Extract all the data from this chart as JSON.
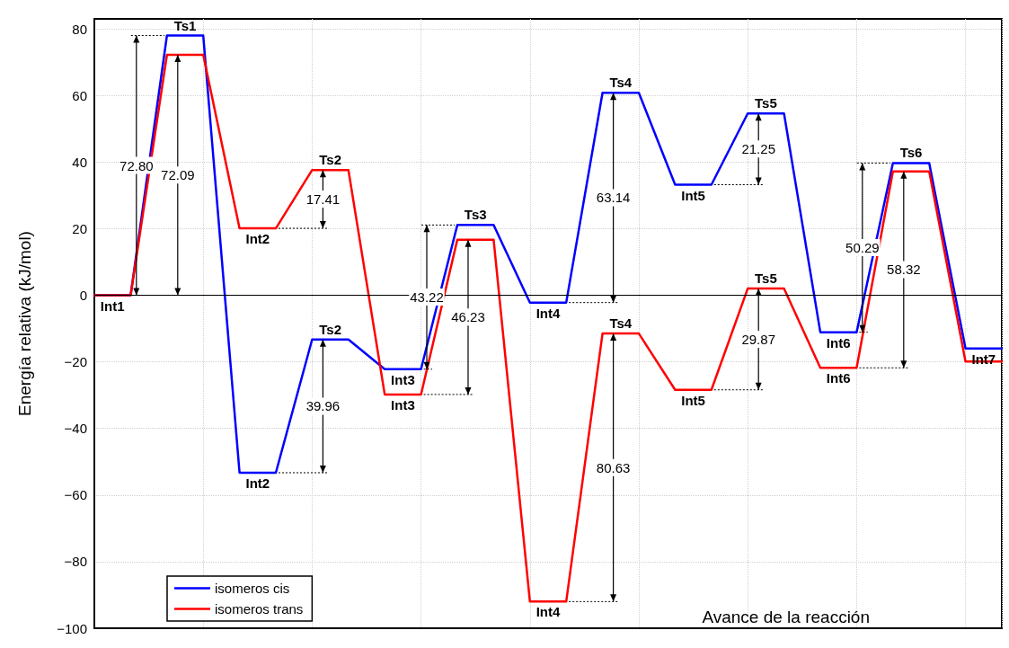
{
  "chart_data": {
    "type": "line",
    "xlabel": "Avance de la reacción",
    "ylabel": "Energía relativa (kJ/mol)",
    "categories": [
      null,
      null,
      null,
      null,
      null,
      null,
      null,
      null,
      null,
      null,
      null,
      null,
      null,
      null,
      null,
      null,
      null,
      null,
      null,
      null,
      null,
      null,
      null,
      null,
      null,
      null
    ],
    "ylim": [
      -100,
      83
    ],
    "yticks": [
      {
        "value": -100,
        "label": "−100"
      },
      {
        "value": -80,
        "label": "−80"
      },
      {
        "value": -60,
        "label": "−60"
      },
      {
        "value": -40,
        "label": "−40"
      },
      {
        "value": -20,
        "label": "−20"
      },
      0,
      20,
      40,
      60,
      80
    ],
    "grid": true,
    "legend": "bottom left",
    "marker": "none",
    "line_style": "solid",
    "ref_lines": [
      {
        "axis": "y",
        "value": 0,
        "color": "#000000"
      }
    ],
    "series": [
      {
        "name": "isomeros cis",
        "color": "#0000ff",
        "values": [
          0,
          0,
          78.0,
          78.0,
          -53.3,
          -53.3,
          -13.3,
          -13.3,
          -22.2,
          -22.2,
          21.1,
          21.1,
          -2.2,
          -2.2,
          60.8,
          60.8,
          33.2,
          33.2,
          54.6,
          54.6,
          -11.1,
          -11.1,
          39.7,
          39.7,
          -16.0,
          -16.0
        ],
        "value_labels": [
          "Int1",
          null,
          "Ts1",
          null,
          "Int2",
          null,
          "Ts2",
          null,
          "Int3",
          null,
          "Ts3",
          null,
          "Int4",
          null,
          "Ts4",
          null,
          "Int5",
          null,
          "Ts5",
          null,
          "Int6",
          null,
          "Ts6",
          null,
          "Int7",
          null
        ]
      },
      {
        "name": "isomeros trans",
        "color": "#ff0000",
        "values": [
          0,
          0,
          72.2,
          72.2,
          20.1,
          20.1,
          37.6,
          37.6,
          -29.8,
          -29.8,
          16.7,
          16.7,
          -92.0,
          -92.0,
          -11.5,
          -11.5,
          -28.4,
          -28.4,
          2.0,
          2.0,
          -21.8,
          -21.8,
          37.2,
          37.2,
          -19.9,
          -19.9
        ],
        "value_labels": [
          null,
          null,
          null,
          null,
          "Int2",
          null,
          "Ts2",
          null,
          "Int3",
          null,
          null,
          null,
          "Int4",
          null,
          "Ts4",
          null,
          "Int5",
          null,
          "Ts5",
          null,
          "Int6",
          null,
          null,
          null,
          null,
          null
        ]
      }
    ],
    "annotations": [
      "72.80",
      "39.96",
      "43.22",
      "63.14",
      "21.25",
      "50.29",
      "72.09",
      "17.41",
      "46.23",
      "80.63",
      "29.87",
      "58.32"
    ]
  }
}
